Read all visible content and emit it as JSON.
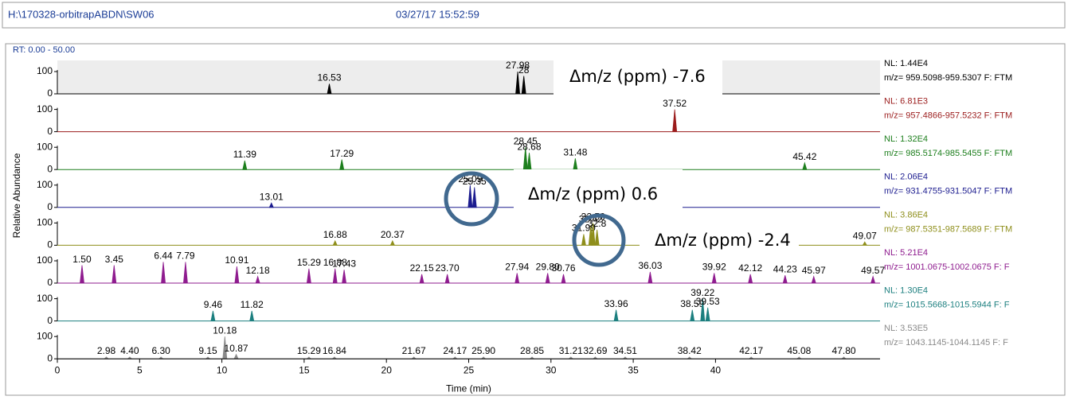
{
  "header": {
    "path": "H:\\170328-orbitrapABDN\\SW06",
    "timestamp": "03/27/17 15:52:59"
  },
  "plot": {
    "range_label": "RT: 0.00 - 50.00",
    "ylabel": "Relative Abundance"
  },
  "annotations": [
    "Δm/z  (ppm) -7.6",
    "Δm/z  (ppm) 0.6",
    "Δm/z  (ppm) -2.4"
  ],
  "chart_data": [
    {
      "type": "chromatogram",
      "nl": "NL: 1.44E4",
      "filter": "m/z= 959.5098-959.5307 F: FTM",
      "color": "#000000",
      "background": "#ededed",
      "x": [
        16.53,
        27.98,
        28.35
      ],
      "x_labels": [
        "16.53",
        "27.98",
        "28"
      ],
      "values": [
        45,
        100,
        80
      ],
      "xlim": [
        0,
        50
      ],
      "ylim": [
        0,
        100
      ],
      "yticks": [
        0,
        100
      ]
    },
    {
      "type": "chromatogram",
      "nl": "NL: 6.81E3",
      "filter": "m/z= 957.4866-957.5232 F: FTM",
      "color": "#9b1c1c",
      "x": [
        37.52
      ],
      "x_labels": [
        "37.52"
      ],
      "values": [
        100
      ],
      "xlim": [
        0,
        50
      ],
      "ylim": [
        0,
        100
      ],
      "yticks": [
        0,
        100
      ]
    },
    {
      "type": "chromatogram",
      "nl": "NL: 1.32E4",
      "filter": "m/z= 985.5174-985.5455 F: FTM",
      "color": "#1d7f1d",
      "x": [
        11.39,
        17.29,
        28.45,
        28.68,
        31.48,
        45.42
      ],
      "x_labels": [
        "11.39",
        "17.29",
        "28.45",
        "28.68",
        "31.48",
        "45.42"
      ],
      "values": [
        40,
        45,
        100,
        75,
        50,
        30
      ],
      "xlim": [
        0,
        50
      ],
      "ylim": [
        0,
        100
      ],
      "yticks": [
        0,
        100
      ]
    },
    {
      "type": "chromatogram",
      "nl": "NL: 2.06E4",
      "filter": "m/z= 931.4755-931.5047 F: FTM",
      "color": "#1c1c8f",
      "x": [
        13.01,
        25.09,
        25.35
      ],
      "x_labels": [
        "13.01",
        "25.09",
        "25.35"
      ],
      "values": [
        20,
        100,
        90
      ],
      "xlim": [
        0,
        50
      ],
      "ylim": [
        0,
        100
      ],
      "yticks": [
        0,
        100
      ]
    },
    {
      "type": "chromatogram",
      "nl": "NL: 3.86E4",
      "filter": "m/z= 987.5351-987.5689 F: FTM",
      "color": "#8f8f1c",
      "x": [
        16.88,
        20.37,
        31.99,
        32.42,
        32.56,
        32.8,
        49.07
      ],
      "x_labels": [
        "16.88",
        "20.37",
        "31.99",
        "32.42",
        "32.56",
        "32.8",
        "49.07"
      ],
      "values": [
        20,
        20,
        50,
        90,
        100,
        70,
        15
      ],
      "xlim": [
        0,
        50
      ],
      "ylim": [
        0,
        100
      ],
      "yticks": [
        0,
        100
      ]
    },
    {
      "type": "chromatogram",
      "nl": "NL: 5.21E4",
      "filter": "m/z= 1001.0675-1002.0675 F: F",
      "color": "#8f1c8f",
      "x": [
        1.5,
        3.45,
        6.44,
        7.79,
        10.91,
        12.18,
        15.29,
        16.88,
        17.43,
        22.15,
        23.7,
        27.94,
        29.8,
        30.76,
        36.03,
        39.92,
        42.12,
        44.23,
        45.97,
        49.57
      ],
      "x_labels": [
        "1.50",
        "3.45",
        "6.44",
        "7.79",
        "10.91",
        "12.18",
        "15.29",
        "16.88",
        "17.43",
        "22.15",
        "23.70",
        "27.94",
        "29.80",
        "30.76",
        "36.03",
        "39.92",
        "42.12",
        "44.23",
        "45.97",
        "49.57"
      ],
      "values": [
        80,
        80,
        95,
        95,
        75,
        30,
        65,
        65,
        60,
        40,
        40,
        45,
        45,
        40,
        50,
        45,
        40,
        35,
        30,
        30
      ],
      "xlim": [
        0,
        50
      ],
      "ylim": [
        0,
        100
      ],
      "yticks": [
        0,
        100
      ]
    },
    {
      "type": "chromatogram",
      "nl": "NL: 1.30E4",
      "filter": "m/z= 1015.5668-1015.5944 F: F",
      "color": "#1c7f7f",
      "x": [
        9.46,
        11.82,
        33.96,
        38.59,
        39.22,
        39.53
      ],
      "x_labels": [
        "9.46",
        "11.82",
        "33.96",
        "38.59",
        "39.22",
        "39.53"
      ],
      "values": [
        45,
        45,
        50,
        50,
        100,
        60
      ],
      "xlim": [
        0,
        50
      ],
      "ylim": [
        0,
        100
      ],
      "yticks": [
        0,
        100
      ]
    },
    {
      "type": "chromatogram",
      "nl": "NL: 3.53E5",
      "filter": "m/z= 1043.1145-1044.1145 F: F",
      "color": "#8a8a8a",
      "x": [
        2.98,
        4.4,
        6.3,
        9.15,
        10.18,
        10.87,
        15.29,
        16.84,
        21.67,
        24.17,
        25.9,
        28.85,
        31.21,
        32.69,
        34.51,
        38.42,
        42.17,
        45.08,
        47.8
      ],
      "x_labels": [
        "2.98",
        "4.40",
        "6.30",
        "9.15",
        "10.18",
        "10.87",
        "15.29",
        "16.84",
        "21.67",
        "24.17",
        "25.90",
        "28.85",
        "31.21",
        "32.69",
        "34.51",
        "38.42",
        "42.17",
        "45.08",
        "47.80"
      ],
      "values": [
        8,
        8,
        8,
        8,
        100,
        20,
        8,
        8,
        8,
        8,
        8,
        8,
        8,
        8,
        8,
        8,
        8,
        8,
        8
      ],
      "xlim": [
        0,
        50
      ],
      "ylim": [
        0,
        100
      ],
      "yticks": [
        0,
        100
      ],
      "xticks": [
        0,
        5,
        10,
        15,
        20,
        25,
        30,
        35,
        40
      ],
      "xlabel": "Time (min)"
    }
  ]
}
